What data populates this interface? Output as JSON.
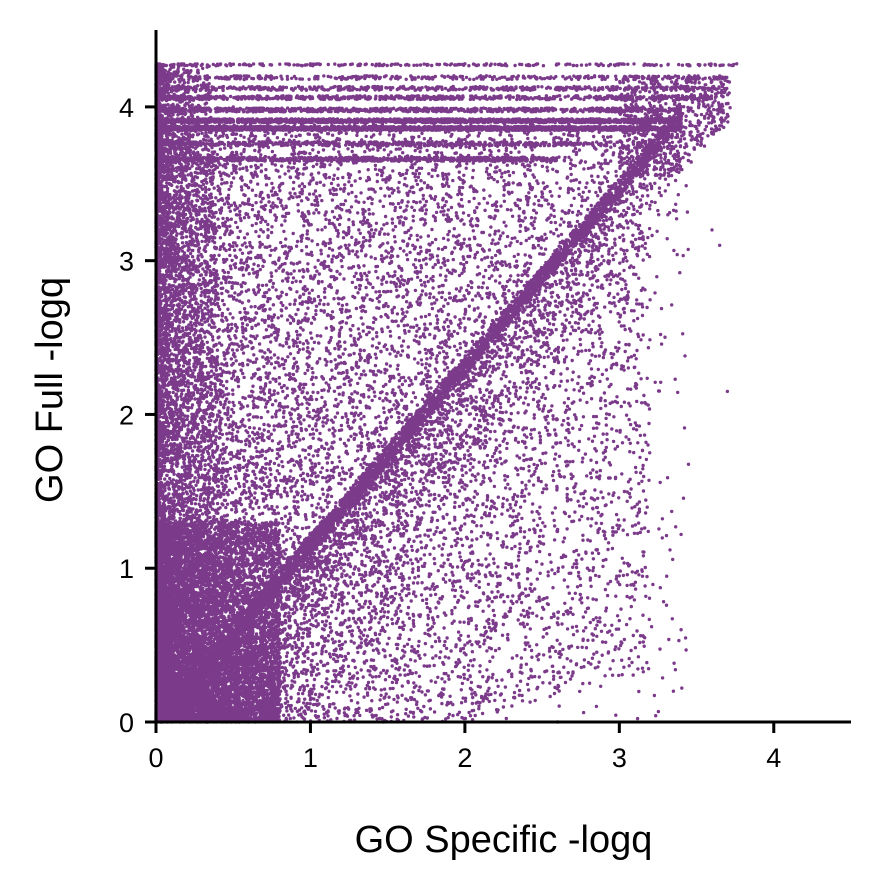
{
  "chart_data": {
    "type": "scatter",
    "title": "",
    "xlabel": "GO Specific -logq",
    "ylabel": "GO Full -logq",
    "xlim": [
      0,
      4.5
    ],
    "ylim": [
      0,
      4.5
    ],
    "xticks": [
      0,
      1,
      2,
      3,
      4
    ],
    "yticks": [
      0,
      1,
      2,
      3,
      4
    ],
    "xtick_labels": [
      "0",
      "1",
      "2",
      "3",
      "4"
    ],
    "ytick_labels": [
      "0",
      "1",
      "2",
      "3",
      "4"
    ],
    "grid": false,
    "legend": "none",
    "marker_color": "#7b3a8a",
    "approx_point_count": 50000,
    "series": [
      {
        "points_sample": [
          [
            0.05,
            0.1
          ],
          [
            0.1,
            0.4
          ],
          [
            0.2,
            0.8
          ],
          [
            0.3,
            0.2
          ],
          [
            0.4,
            0.5
          ],
          [
            0.15,
            1.2
          ],
          [
            0.1,
            2.0
          ],
          [
            0.05,
            3.0
          ],
          [
            0.2,
            3.9
          ],
          [
            0.5,
            0.3
          ],
          [
            0.6,
            0.9
          ],
          [
            0.8,
            0.6
          ],
          [
            0.9,
            1.1
          ],
          [
            1.0,
            1.0
          ],
          [
            1.2,
            1.3
          ],
          [
            1.5,
            1.6
          ],
          [
            1.8,
            1.9
          ],
          [
            2.0,
            2.1
          ],
          [
            2.3,
            2.4
          ],
          [
            2.6,
            2.7
          ],
          [
            2.9,
            3.0
          ],
          [
            3.2,
            3.5
          ],
          [
            3.4,
            3.9
          ],
          [
            3.6,
            4.1
          ],
          [
            3.76,
            4.28
          ],
          [
            1.0,
            3.9
          ],
          [
            2.0,
            3.9
          ],
          [
            3.0,
            3.9
          ],
          [
            1.0,
            4.28
          ],
          [
            2.0,
            4.28
          ],
          [
            3.0,
            4.28
          ],
          [
            0.7,
            2.5
          ],
          [
            1.2,
            3.0
          ],
          [
            1.5,
            2.8
          ],
          [
            2.4,
            3.4
          ],
          [
            2.8,
            3.6
          ],
          [
            3.6,
            3.2
          ],
          [
            3.65,
            3.1
          ],
          [
            3.7,
            2.15
          ],
          [
            3.4,
            1.22
          ],
          [
            3.4,
            0.6
          ],
          [
            3.35,
            0.2
          ],
          [
            3.1,
            1.4
          ],
          [
            2.7,
            0.7
          ],
          [
            2.4,
            1.1
          ],
          [
            2.0,
            0.5
          ],
          [
            1.5,
            0.8
          ],
          [
            1.2,
            0.3
          ],
          [
            0.5,
            4.0
          ],
          [
            1.4,
            3.4
          ],
          [
            2.9,
            2.4
          ],
          [
            3.0,
            0.95
          ],
          [
            3.15,
            0.35
          ],
          [
            2.6,
            0.0
          ],
          [
            1.9,
            0.05
          ]
        ]
      }
    ]
  }
}
